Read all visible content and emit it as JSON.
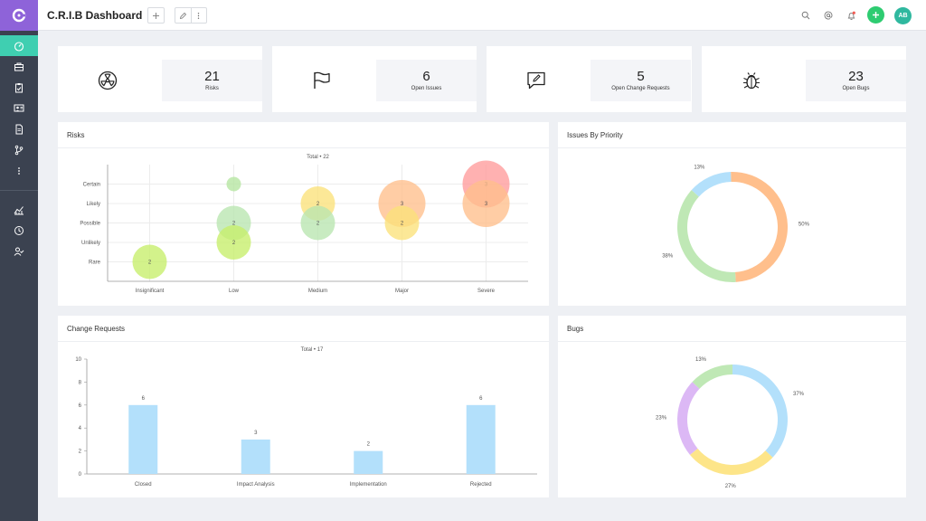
{
  "header": {
    "title": "C.R.I.B Dashboard"
  },
  "sidebar": {
    "items": [
      {
        "icon": "dashboard-icon",
        "active": true
      },
      {
        "icon": "briefcase-icon"
      },
      {
        "icon": "clipboard-icon"
      },
      {
        "icon": "users-icon"
      },
      {
        "icon": "document-icon"
      },
      {
        "icon": "branch-icon"
      },
      {
        "icon": "more-vertical-icon"
      },
      {
        "icon": "analytics-icon"
      },
      {
        "icon": "clock-icon"
      },
      {
        "icon": "user-check-icon"
      }
    ]
  },
  "stats": [
    {
      "value": "21",
      "label": "Risks",
      "icon": "radiation-icon"
    },
    {
      "value": "6",
      "label": "Open Issues",
      "icon": "flag-icon"
    },
    {
      "value": "5",
      "label": "Open Change Requests",
      "icon": "edit-comment-icon"
    },
    {
      "value": "23",
      "label": "Open Bugs",
      "icon": "bug-icon"
    }
  ],
  "colors": {
    "sidebar": "#3b4250",
    "logo": "#8e63d9",
    "active": "#3fcfb1",
    "add": "#2ecc71",
    "avatar": "#2fb89f",
    "bar": "#b3e0fb"
  },
  "user": {
    "initials": "AB"
  },
  "panels": {
    "risks": {
      "title": "Risks"
    },
    "issues": {
      "title": "Issues By Priority"
    },
    "changes": {
      "title": "Change Requests"
    },
    "bugs": {
      "title": "Bugs"
    }
  },
  "chart_data": [
    {
      "id": "risks",
      "type": "scatter",
      "title": "Total • 22",
      "x_categories": [
        "Insignificant",
        "Low",
        "Medium",
        "Major",
        "Severe"
      ],
      "y_categories": [
        "Rare",
        "Unlikely",
        "Possible",
        "Likely",
        "Certain"
      ],
      "grid": true,
      "points": [
        {
          "x": "Insignificant",
          "y": "Rare",
          "value": 2,
          "label": "2",
          "color": "#c6ee6a"
        },
        {
          "x": "Low",
          "y": "Certain",
          "value": 1,
          "label": "",
          "color": "#b5e6a0"
        },
        {
          "x": "Low",
          "y": "Possible",
          "value": 2,
          "label": "2",
          "color": "#b8e6b0"
        },
        {
          "x": "Low",
          "y": "Unlikely",
          "value": 2,
          "label": "2",
          "color": "#c6ee6a"
        },
        {
          "x": "Medium",
          "y": "Likely",
          "value": 2,
          "label": "2",
          "color": "#fbe27a"
        },
        {
          "x": "Medium",
          "y": "Possible",
          "value": 2,
          "label": "2",
          "color": "#b8e6b0"
        },
        {
          "x": "Major",
          "y": "Likely",
          "value": 3,
          "label": "3",
          "color": "#ffbf8c"
        },
        {
          "x": "Major",
          "y": "Possible",
          "value": 2,
          "label": "2",
          "color": "#fbe27a"
        },
        {
          "x": "Severe",
          "y": "Certain",
          "value": 3,
          "label": "3",
          "color": "#ff9b9b"
        },
        {
          "x": "Severe",
          "y": "Likely",
          "value": 3,
          "label": "3",
          "color": "#ffbf8c"
        }
      ]
    },
    {
      "id": "issues",
      "type": "pie",
      "slices": [
        {
          "label": "13%",
          "value": 13,
          "color": "#b3e0fb"
        },
        {
          "label": "50%",
          "value": 50,
          "color": "#ffbf8c"
        },
        {
          "label": "38%",
          "value": 38,
          "color": "#bfe8b5"
        }
      ]
    },
    {
      "id": "changes",
      "type": "bar",
      "title": "Total • 17",
      "categories": [
        "Closed",
        "Impact Analysis",
        "Implementation",
        "Rejected"
      ],
      "values": [
        6,
        3,
        2,
        6
      ],
      "ylim": [
        0,
        10
      ],
      "yticks": [
        0,
        2,
        4,
        6,
        8,
        10
      ],
      "color": "#b3e0fb"
    },
    {
      "id": "bugs",
      "type": "pie",
      "slices": [
        {
          "label": "37%",
          "value": 37,
          "color": "#b3e0fb"
        },
        {
          "label": "27%",
          "value": 27,
          "color": "#fde589"
        },
        {
          "label": "23%",
          "value": 23,
          "color": "#dcb8f5"
        },
        {
          "label": "13%",
          "value": 13,
          "color": "#bfe8b5"
        }
      ]
    }
  ]
}
